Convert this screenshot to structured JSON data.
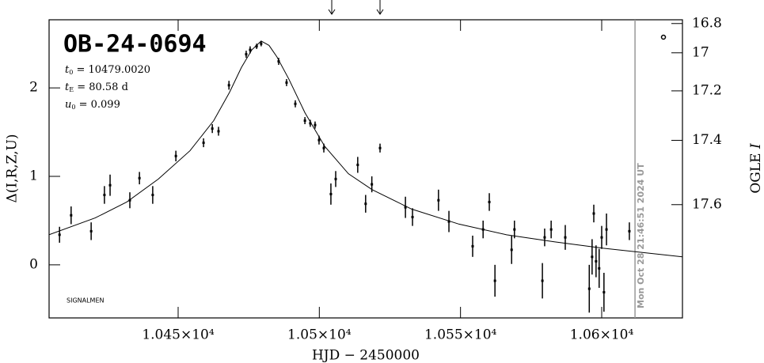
{
  "chart_data": {
    "type": "scatter",
    "title": "OB-24-0694",
    "parameters": [
      {
        "symbol": "t",
        "subscript": "0",
        "text": " = 10479.0020"
      },
      {
        "symbol": "t",
        "subscript": "E",
        "text": " = 80.58 d"
      },
      {
        "symbol": "u",
        "subscript": "0",
        "text": " = 0.099"
      }
    ],
    "note": "SIGNALMEN",
    "timestamp": "Mon Oct 28 21:46:51 2024 UT",
    "x_label": "HJD − 2450000",
    "y_label": "Δ(I,R,Z,U)",
    "y2_label": {
      "text": "OGLE ",
      "italic": "I"
    },
    "color": "#000000",
    "xlim": [
      10404.3,
      10628.6
    ],
    "xticks": [
      {
        "value": 10450,
        "label": "1.045×10⁴"
      },
      {
        "value": 10500,
        "label": "1.05×10⁴"
      },
      {
        "value": 10550,
        "label": "1.055×10⁴"
      },
      {
        "value": 10600,
        "label": "1.06×10⁴"
      }
    ],
    "ylim": [
      -0.6,
      2.77
    ],
    "yticks": [
      0,
      1,
      2
    ],
    "y2lim": [
      16.77,
      17.86
    ],
    "y2ticks": [
      16.8,
      17,
      17.2,
      17.4,
      17.6
    ],
    "arrows": [
      10504.4,
      10521.5
    ],
    "date_line": 10611.8,
    "series": [
      {
        "x": [
          10408.0,
          10412.1,
          10419.2,
          10423.9,
          10425.9,
          10432.9,
          10436.3,
          10441.0,
          10449.2,
          10459.0,
          10462.1,
          10464.3,
          10468.0,
          10474.1,
          10475.5,
          10477.8,
          10479.4,
          10485.6,
          10488.4,
          10491.5,
          10494.9,
          10496.8,
          10498.5,
          10499.9,
          10501.6,
          10504.1,
          10505.8,
          10513.6,
          10516.4,
          10518.6,
          10521.5,
          10530.5,
          10533.0,
          10542.2,
          10545.9,
          10554.3,
          10558.0,
          10560.2,
          10562.2,
          10568.1,
          10569.1,
          10579.0,
          10579.8,
          10582.1,
          10587.1,
          10595.6,
          10596.6,
          10597.2,
          10598.0,
          10599.1,
          10600.0,
          10600.8,
          10601.7,
          10609.8
        ],
        "values": [
          0.34,
          0.56,
          0.38,
          0.79,
          0.9,
          0.73,
          0.98,
          0.79,
          1.23,
          1.38,
          1.54,
          1.51,
          2.03,
          2.38,
          2.43,
          2.47,
          2.5,
          2.3,
          2.06,
          1.82,
          1.63,
          1.6,
          1.58,
          1.41,
          1.32,
          0.8,
          0.97,
          1.13,
          0.69,
          0.91,
          1.32,
          0.65,
          0.54,
          0.73,
          0.49,
          0.21,
          0.4,
          0.71,
          -0.18,
          0.17,
          0.4,
          -0.18,
          0.31,
          0.4,
          0.31,
          -0.27,
          0.09,
          0.58,
          0.04,
          -0.04,
          0.31,
          -0.31,
          0.4,
          0.38
        ],
        "errors": [
          0.09,
          0.1,
          0.1,
          0.1,
          0.12,
          0.09,
          0.07,
          0.1,
          0.06,
          0.05,
          0.05,
          0.05,
          0.05,
          0.04,
          0.04,
          0.03,
          0.03,
          0.04,
          0.04,
          0.04,
          0.04,
          0.04,
          0.04,
          0.05,
          0.05,
          0.12,
          0.09,
          0.09,
          0.1,
          0.09,
          0.05,
          0.12,
          0.1,
          0.12,
          0.12,
          0.12,
          0.1,
          0.1,
          0.18,
          0.16,
          0.1,
          0.2,
          0.1,
          0.1,
          0.14,
          0.27,
          0.2,
          0.1,
          0.18,
          0.22,
          0.13,
          0.22,
          0.18,
          0.1
        ]
      }
    ],
    "model": {
      "x": [
        10404.3,
        10420.6,
        10431.8,
        10443.0,
        10454.2,
        10462.6,
        10468.2,
        10472.4,
        10476.1,
        10479.4,
        10482.2,
        10485.0,
        10489.2,
        10494.9,
        10501.9,
        10510.3,
        10518.7,
        10532.7,
        10549.5,
        10566.3,
        10583.2,
        10600.0,
        10628.6
      ],
      "values": [
        0.34,
        0.53,
        0.71,
        0.97,
        1.29,
        1.63,
        1.95,
        2.23,
        2.43,
        2.53,
        2.48,
        2.35,
        2.1,
        1.72,
        1.34,
        1.03,
        0.85,
        0.63,
        0.46,
        0.34,
        0.26,
        0.19,
        0.09
      ]
    }
  }
}
